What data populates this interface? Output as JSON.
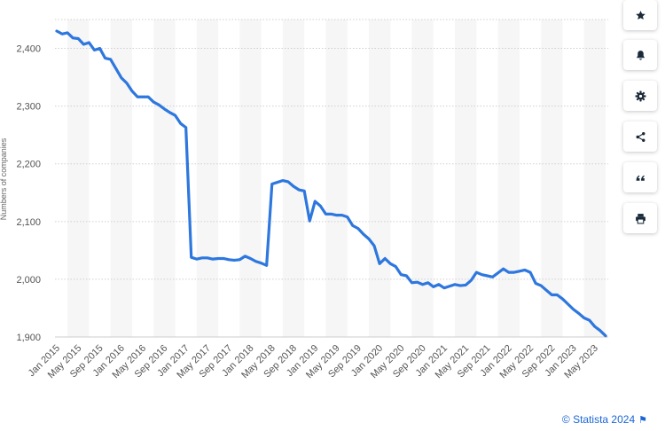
{
  "chart_data": {
    "type": "line",
    "title": "",
    "xlabel": "",
    "ylabel": "Numbers of companies",
    "ylim": [
      1900,
      2450
    ],
    "y_ticks": [
      1900,
      2000,
      2100,
      2200,
      2300,
      2400
    ],
    "y_tick_labels": [
      "1,900",
      "2,000",
      "2,100",
      "2,200",
      "2,300",
      "2,400"
    ],
    "x_tick_labels": [
      "Jan 2015",
      "May 2015",
      "Sep 2015",
      "Jan 2016",
      "May 2016",
      "Sep 2016",
      "Jan 2017",
      "May 2017",
      "Sep 2017",
      "Jan 2018",
      "May 2018",
      "Sep 2018",
      "Jan 2019",
      "May 2019",
      "Sep 2019",
      "Jan 2020",
      "May 2020",
      "Sep 2020",
      "Jan 2021",
      "May 2021",
      "Sep 2021",
      "Jan 2022",
      "May 2022",
      "Sep 2022",
      "Jan 2023",
      "May 2023"
    ],
    "grid": true,
    "color": "#2d77de",
    "series": [
      {
        "name": "",
        "values": [
          2430,
          2425,
          2427,
          2418,
          2417,
          2407,
          2410,
          2397,
          2400,
          2383,
          2381,
          2365,
          2349,
          2340,
          2326,
          2316,
          2316,
          2316,
          2307,
          2302,
          2295,
          2289,
          2284,
          2270,
          2263,
          2038,
          2035,
          2037,
          2037,
          2035,
          2036,
          2036,
          2034,
          2033,
          2034,
          2040,
          2036,
          2031,
          2028,
          2024,
          2165,
          2168,
          2171,
          2169,
          2161,
          2155,
          2153,
          2101,
          2135,
          2127,
          2113,
          2113,
          2111,
          2111,
          2108,
          2093,
          2088,
          2078,
          2070,
          2058,
          2027,
          2036,
          2027,
          2022,
          2008,
          2006,
          1994,
          1995,
          1991,
          1994,
          1987,
          1991,
          1985,
          1988,
          1991,
          1989,
          1990,
          1998,
          2012,
          2008,
          2006,
          2004,
          2011,
          2018,
          2012,
          2012,
          2014,
          2016,
          2012,
          1993,
          1989,
          1981,
          1973,
          1973,
          1966,
          1957,
          1948,
          1941,
          1933,
          1929,
          1918,
          1911,
          1902
        ]
      }
    ]
  },
  "toolbar": {
    "buttons": [
      {
        "icon": "star-icon"
      },
      {
        "icon": "bell-icon"
      },
      {
        "icon": "gear-icon"
      },
      {
        "icon": "share-icon"
      },
      {
        "icon": "quote-icon"
      },
      {
        "icon": "print-icon"
      }
    ]
  },
  "credit": {
    "text": "© Statista 2024",
    "flag_glyph": "⚑"
  }
}
